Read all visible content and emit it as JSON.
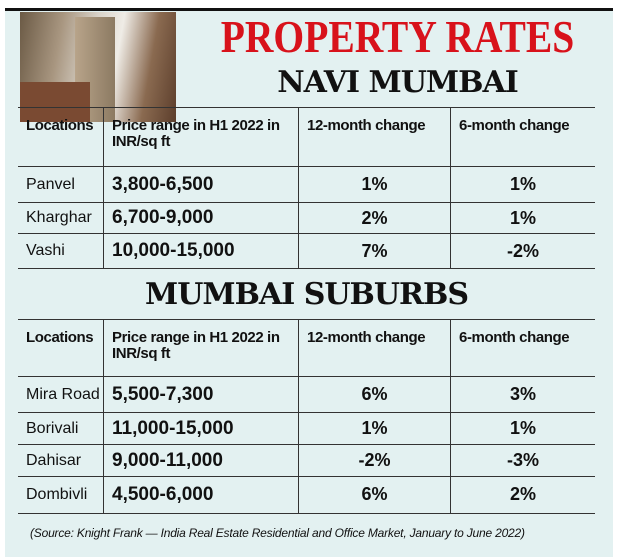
{
  "title": "PROPERTY RATES",
  "sections": [
    {
      "heading": "NAVI MUMBAI",
      "columns": [
        "Locations",
        "Price range in H1 2022 in INR/sq ft",
        "12-month change",
        "6-month change"
      ],
      "rows": [
        {
          "location": "Panvel",
          "price": "3,800-6,500",
          "change_12m": "1%",
          "change_6m": "1%"
        },
        {
          "location": "Kharghar",
          "price": "6,700-9,000",
          "change_12m": "2%",
          "change_6m": "1%"
        },
        {
          "location": "Vashi",
          "price": "10,000-15,000",
          "change_12m": "7%",
          "change_6m": "-2%"
        }
      ]
    },
    {
      "heading": "MUMBAI SUBURBS",
      "columns": [
        "Locations",
        "Price range in H1 2022 in INR/sq ft",
        "12-month change",
        "6-month change"
      ],
      "rows": [
        {
          "location": "Mira Road",
          "price": "5,500-7,300",
          "change_12m": "6%",
          "change_6m": "3%"
        },
        {
          "location": "Borivali",
          "price": "11,000-15,000",
          "change_12m": "1%",
          "change_6m": "1%"
        },
        {
          "location": "Dahisar",
          "price": "9,000-11,000",
          "change_12m": "-2%",
          "change_6m": "-3%"
        },
        {
          "location": "Dombivli",
          "price": "4,500-6,000",
          "change_12m": "6%",
          "change_6m": "2%"
        }
      ]
    }
  ],
  "source": "(Source: Knight Frank — India Real Estate Residential and Office Market, January to June 2022)"
}
